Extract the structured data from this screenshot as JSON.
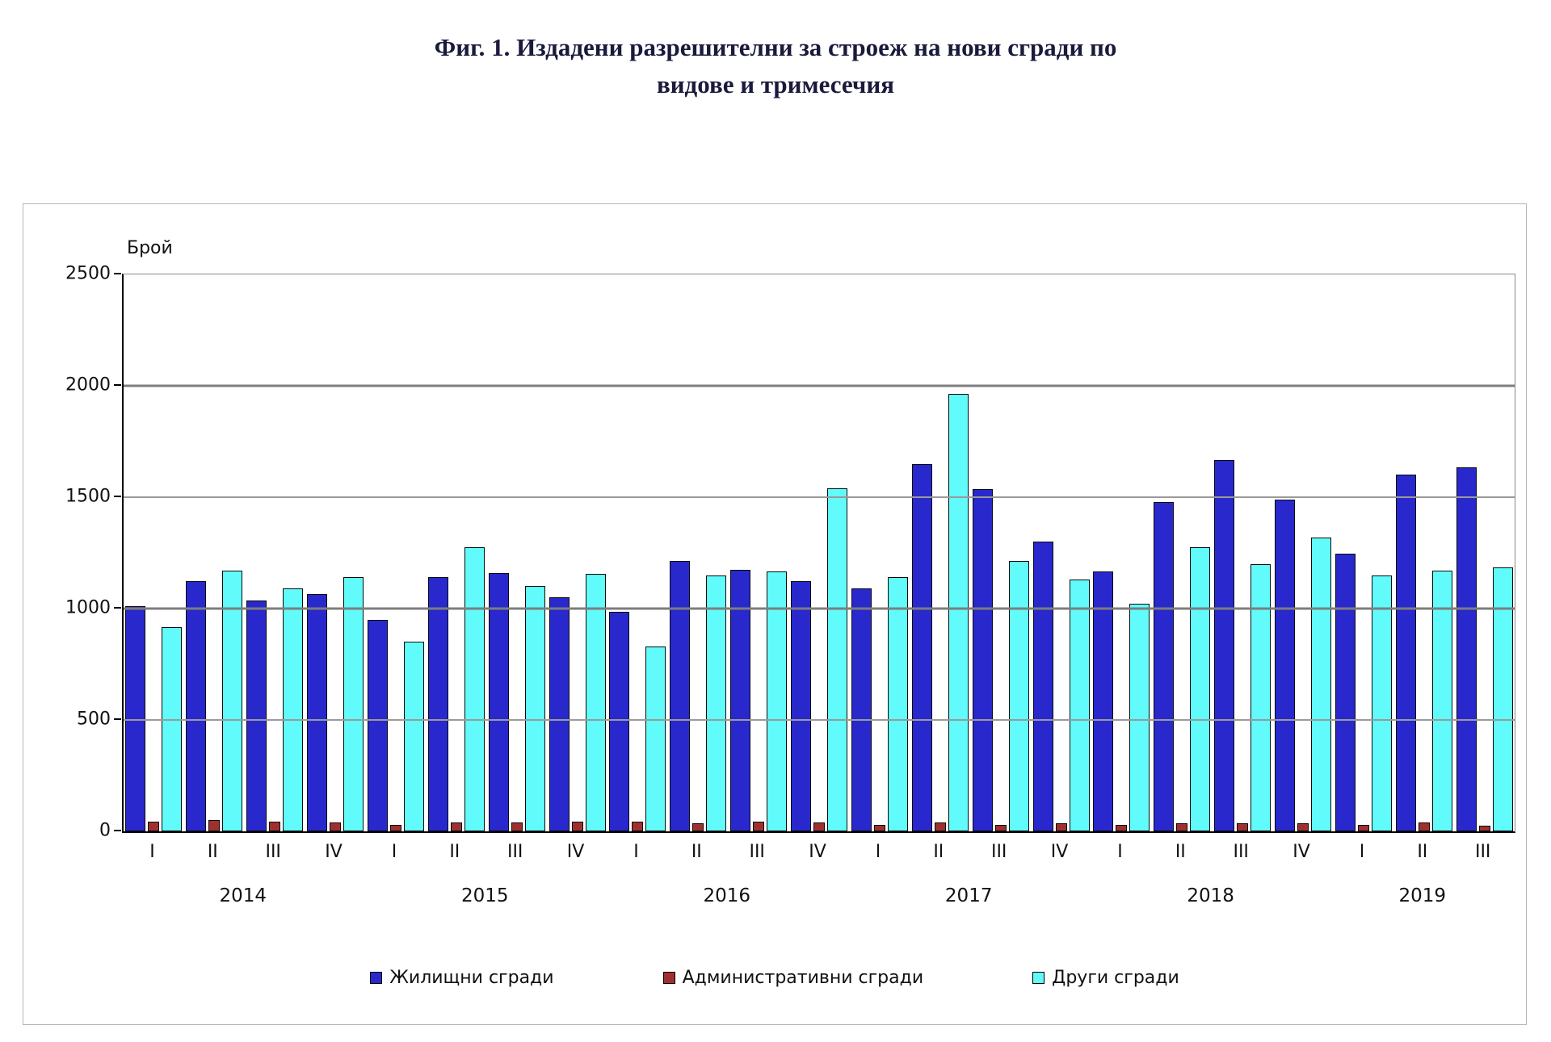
{
  "title": {
    "line1": "Фиг. 1. Издадени разрешителни за строеж на нови сгради по",
    "line2": "видове и тримесечия"
  },
  "chart_data": {
    "type": "bar",
    "title": "Фиг. 1. Издадени разрешителни за строеж на нови сгради по видове и тримесечия",
    "ylabel": "Брой",
    "xlabel": "",
    "ylim": [
      0,
      2500
    ],
    "yticks": [
      0,
      500,
      1000,
      1500,
      2000,
      2500
    ],
    "major_gridlines": [
      1000,
      2000
    ],
    "grid": true,
    "legend_position": "bottom",
    "years": [
      {
        "label": "2014",
        "quarters": [
          "I",
          "II",
          "III",
          "IV"
        ]
      },
      {
        "label": "2015",
        "quarters": [
          "I",
          "II",
          "III",
          "IV"
        ]
      },
      {
        "label": "2016",
        "quarters": [
          "I",
          "II",
          "III",
          "IV"
        ]
      },
      {
        "label": "2017",
        "quarters": [
          "I",
          "II",
          "III",
          "IV"
        ]
      },
      {
        "label": "2018",
        "quarters": [
          "I",
          "II",
          "III",
          "IV"
        ]
      },
      {
        "label": "2019",
        "quarters": [
          "I",
          "II",
          "III"
        ]
      }
    ],
    "series": [
      {
        "name": "Жилищни сгради",
        "color": "#2828CD",
        "values": [
          1010,
          1125,
          1035,
          1065,
          950,
          1140,
          1160,
          1050,
          985,
          1215,
          1175,
          1125,
          1090,
          1650,
          1535,
          1300,
          1165,
          1480,
          1665,
          1490,
          1245,
          1600,
          1635
        ]
      },
      {
        "name": "Административни  сгради",
        "color": "#A03030",
        "values": [
          45,
          50,
          45,
          40,
          30,
          40,
          40,
          45,
          45,
          35,
          45,
          40,
          30,
          40,
          30,
          35,
          30,
          35,
          35,
          35,
          30,
          40,
          25
        ]
      },
      {
        "name": "Други сгради",
        "color": "#61FBFB",
        "values": [
          915,
          1170,
          1090,
          1140,
          850,
          1275,
          1100,
          1155,
          830,
          1150,
          1165,
          1540,
          1140,
          1965,
          1215,
          1130,
          1020,
          1275,
          1200,
          1320,
          1150,
          1170,
          1185
        ]
      }
    ]
  }
}
